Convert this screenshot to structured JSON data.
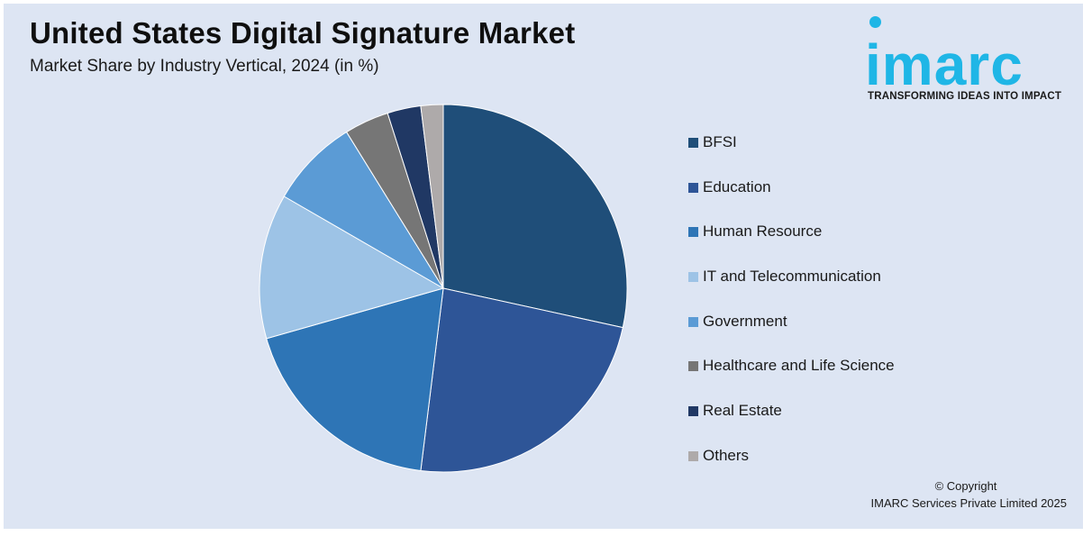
{
  "header": {
    "title": "United States Digital Signature Market",
    "subtitle": "Market Share by Industry Vertical, 2024 (in %)"
  },
  "logo": {
    "wordmark": "imarc",
    "tagline": "TRANSFORMING IDEAS INTO IMPACT",
    "color": "#1fb6e6"
  },
  "footer": {
    "copyright_line1": "© Copyright",
    "copyright_line2": "IMARC Services Private Limited 2025"
  },
  "chart_data": {
    "type": "pie",
    "title": "United States Digital Signature Market",
    "subtitle": "Market Share by Industry Vertical, 2024 (in %)",
    "legend_position": "right",
    "start_angle_deg": 0,
    "direction": "clockwise",
    "slices": [
      {
        "label": "BFSI",
        "value": 29,
        "color": "#1f4e79"
      },
      {
        "label": "Education",
        "value": 24,
        "color": "#2e5597"
      },
      {
        "label": "Human Resource",
        "value": 19,
        "color": "#2e75b6"
      },
      {
        "label": "IT and Telecommunication",
        "value": 13,
        "color": "#9dc3e6"
      },
      {
        "label": "Government",
        "value": 8,
        "color": "#5b9bd5"
      },
      {
        "label": "Healthcare and Life Science",
        "value": 4,
        "color": "#767676"
      },
      {
        "label": "Real Estate",
        "value": 3,
        "color": "#203864"
      },
      {
        "label": "Others",
        "value": 2,
        "color": "#aeaaaa"
      }
    ]
  }
}
